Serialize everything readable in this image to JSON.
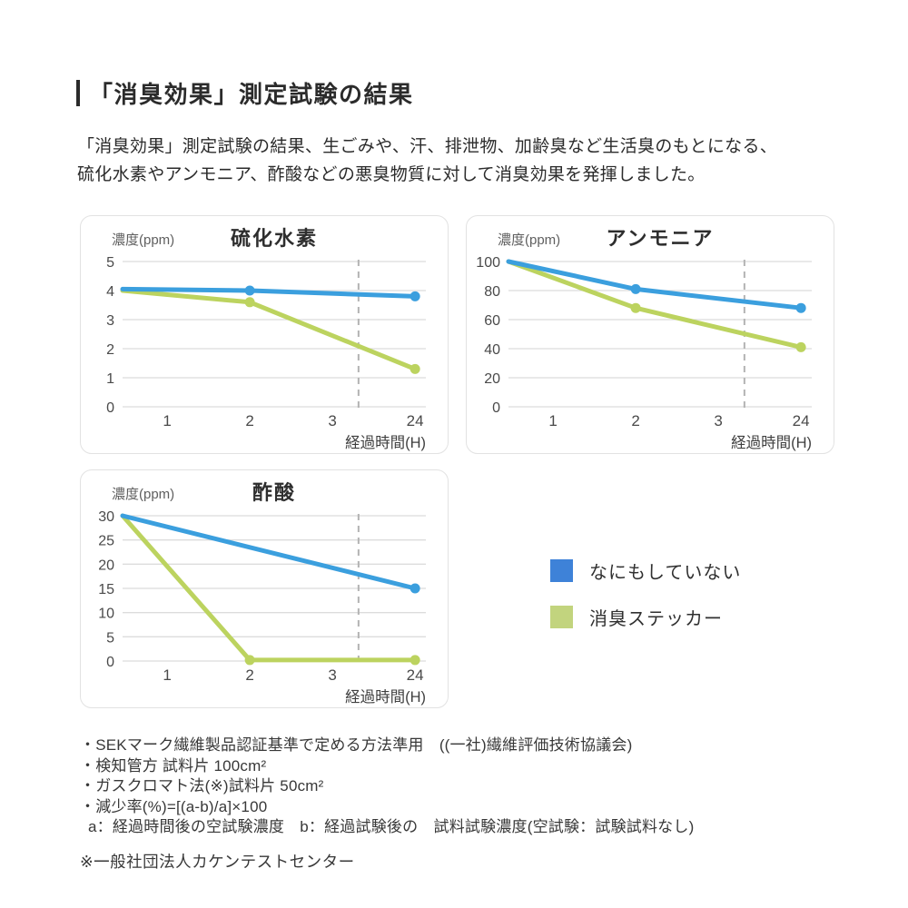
{
  "page": {
    "title": "「消臭効果」測定試験の結果",
    "description_line1": "「消臭効果」測定試験の結果、生ごみや、汗、排泄物、加齢臭など生活臭のもとになる、",
    "description_line2": "硫化水素やアンモニア、酢酸などの悪臭物質に対して消臭効果を発揮しました。"
  },
  "colors": {
    "line_blue": "#3B9FDE",
    "line_green": "#BCD35F",
    "legend_blue": "#3E82D8",
    "legend_green": "#C2D47E",
    "grid": "#DCDCDC",
    "dashed": "#B3B3B3"
  },
  "legend": {
    "items": [
      {
        "label": "なにもしていない",
        "color_key": "legend_blue"
      },
      {
        "label": "消臭ステッカー",
        "color_key": "legend_green"
      }
    ]
  },
  "chart_data": [
    {
      "id": "hydrogen-sulfide",
      "type": "line",
      "title": "硫化水素",
      "y_axis_label": "濃度(ppm)",
      "x_axis_label": "経過時間(H)",
      "x_ticks": [
        "1",
        "2",
        "3",
        "24"
      ],
      "y_ticks": [
        0,
        1,
        2,
        3,
        4,
        5
      ],
      "ylim": [
        0,
        5
      ],
      "grid": true,
      "dashed_guide_between": [
        "3",
        "24"
      ],
      "series": [
        {
          "name": "なにもしていない",
          "color": "line_blue",
          "start_value": 4.05,
          "points": [
            {
              "x": "2",
              "value": 4.0,
              "dot": true
            },
            {
              "x": "24",
              "value": 3.8,
              "dot": true
            }
          ]
        },
        {
          "name": "消臭ステッカー",
          "color": "line_green",
          "start_value": 4.0,
          "points": [
            {
              "x": "2",
              "value": 3.6,
              "dot": true
            },
            {
              "x": "24",
              "value": 1.3,
              "dot": true
            }
          ]
        }
      ]
    },
    {
      "id": "ammonia",
      "type": "line",
      "title": "アンモニア",
      "y_axis_label": "濃度(ppm)",
      "x_axis_label": "経過時間(H)",
      "x_ticks": [
        "1",
        "2",
        "3",
        "24"
      ],
      "y_ticks": [
        0,
        20,
        40,
        60,
        80,
        100
      ],
      "ylim": [
        0,
        100
      ],
      "grid": true,
      "dashed_guide_between": [
        "3",
        "24"
      ],
      "series": [
        {
          "name": "なにもしていない",
          "color": "line_blue",
          "start_value": 100,
          "points": [
            {
              "x": "2",
              "value": 81,
              "dot": true
            },
            {
              "x": "24",
              "value": 68,
              "dot": true
            }
          ]
        },
        {
          "name": "消臭ステッカー",
          "color": "line_green",
          "start_value": 100,
          "points": [
            {
              "x": "2",
              "value": 68,
              "dot": true
            },
            {
              "x": "24",
              "value": 41,
              "dot": true
            }
          ]
        }
      ]
    },
    {
      "id": "acetic-acid",
      "type": "line",
      "title": "酢酸",
      "y_axis_label": "濃度(ppm)",
      "x_axis_label": "経過時間(H)",
      "x_ticks": [
        "1",
        "2",
        "3",
        "24"
      ],
      "y_ticks": [
        0,
        5,
        10,
        15,
        20,
        25,
        30
      ],
      "ylim": [
        0,
        30
      ],
      "grid": true,
      "dashed_guide_between": [
        "3",
        "24"
      ],
      "series": [
        {
          "name": "なにもしていない",
          "color": "line_blue",
          "start_value": 30,
          "points": [
            {
              "x": "24",
              "value": 15,
              "dot": true
            }
          ]
        },
        {
          "name": "消臭ステッカー",
          "color": "line_green",
          "start_value": 30,
          "points": [
            {
              "x": "2",
              "value": 0.2,
              "dot": true
            },
            {
              "x": "24",
              "value": 0.2,
              "dot": true
            }
          ]
        }
      ]
    }
  ],
  "footnotes": [
    "・SEKマーク繊維製品認証基準で定める方法準用　((一社)繊維評価技術協議会)",
    "・検知管方 試料片 100cm²",
    "・ガスクロマト法(※)試料片 50cm²",
    "・減少率(%)=[(a-b)/a]×100",
    "a：経過時間後の空試験濃度　b：経過試験後の　試料試験濃度(空試験：試験試料なし)"
  ],
  "bottom_note": "※一般社団法人カケンテストセンター"
}
